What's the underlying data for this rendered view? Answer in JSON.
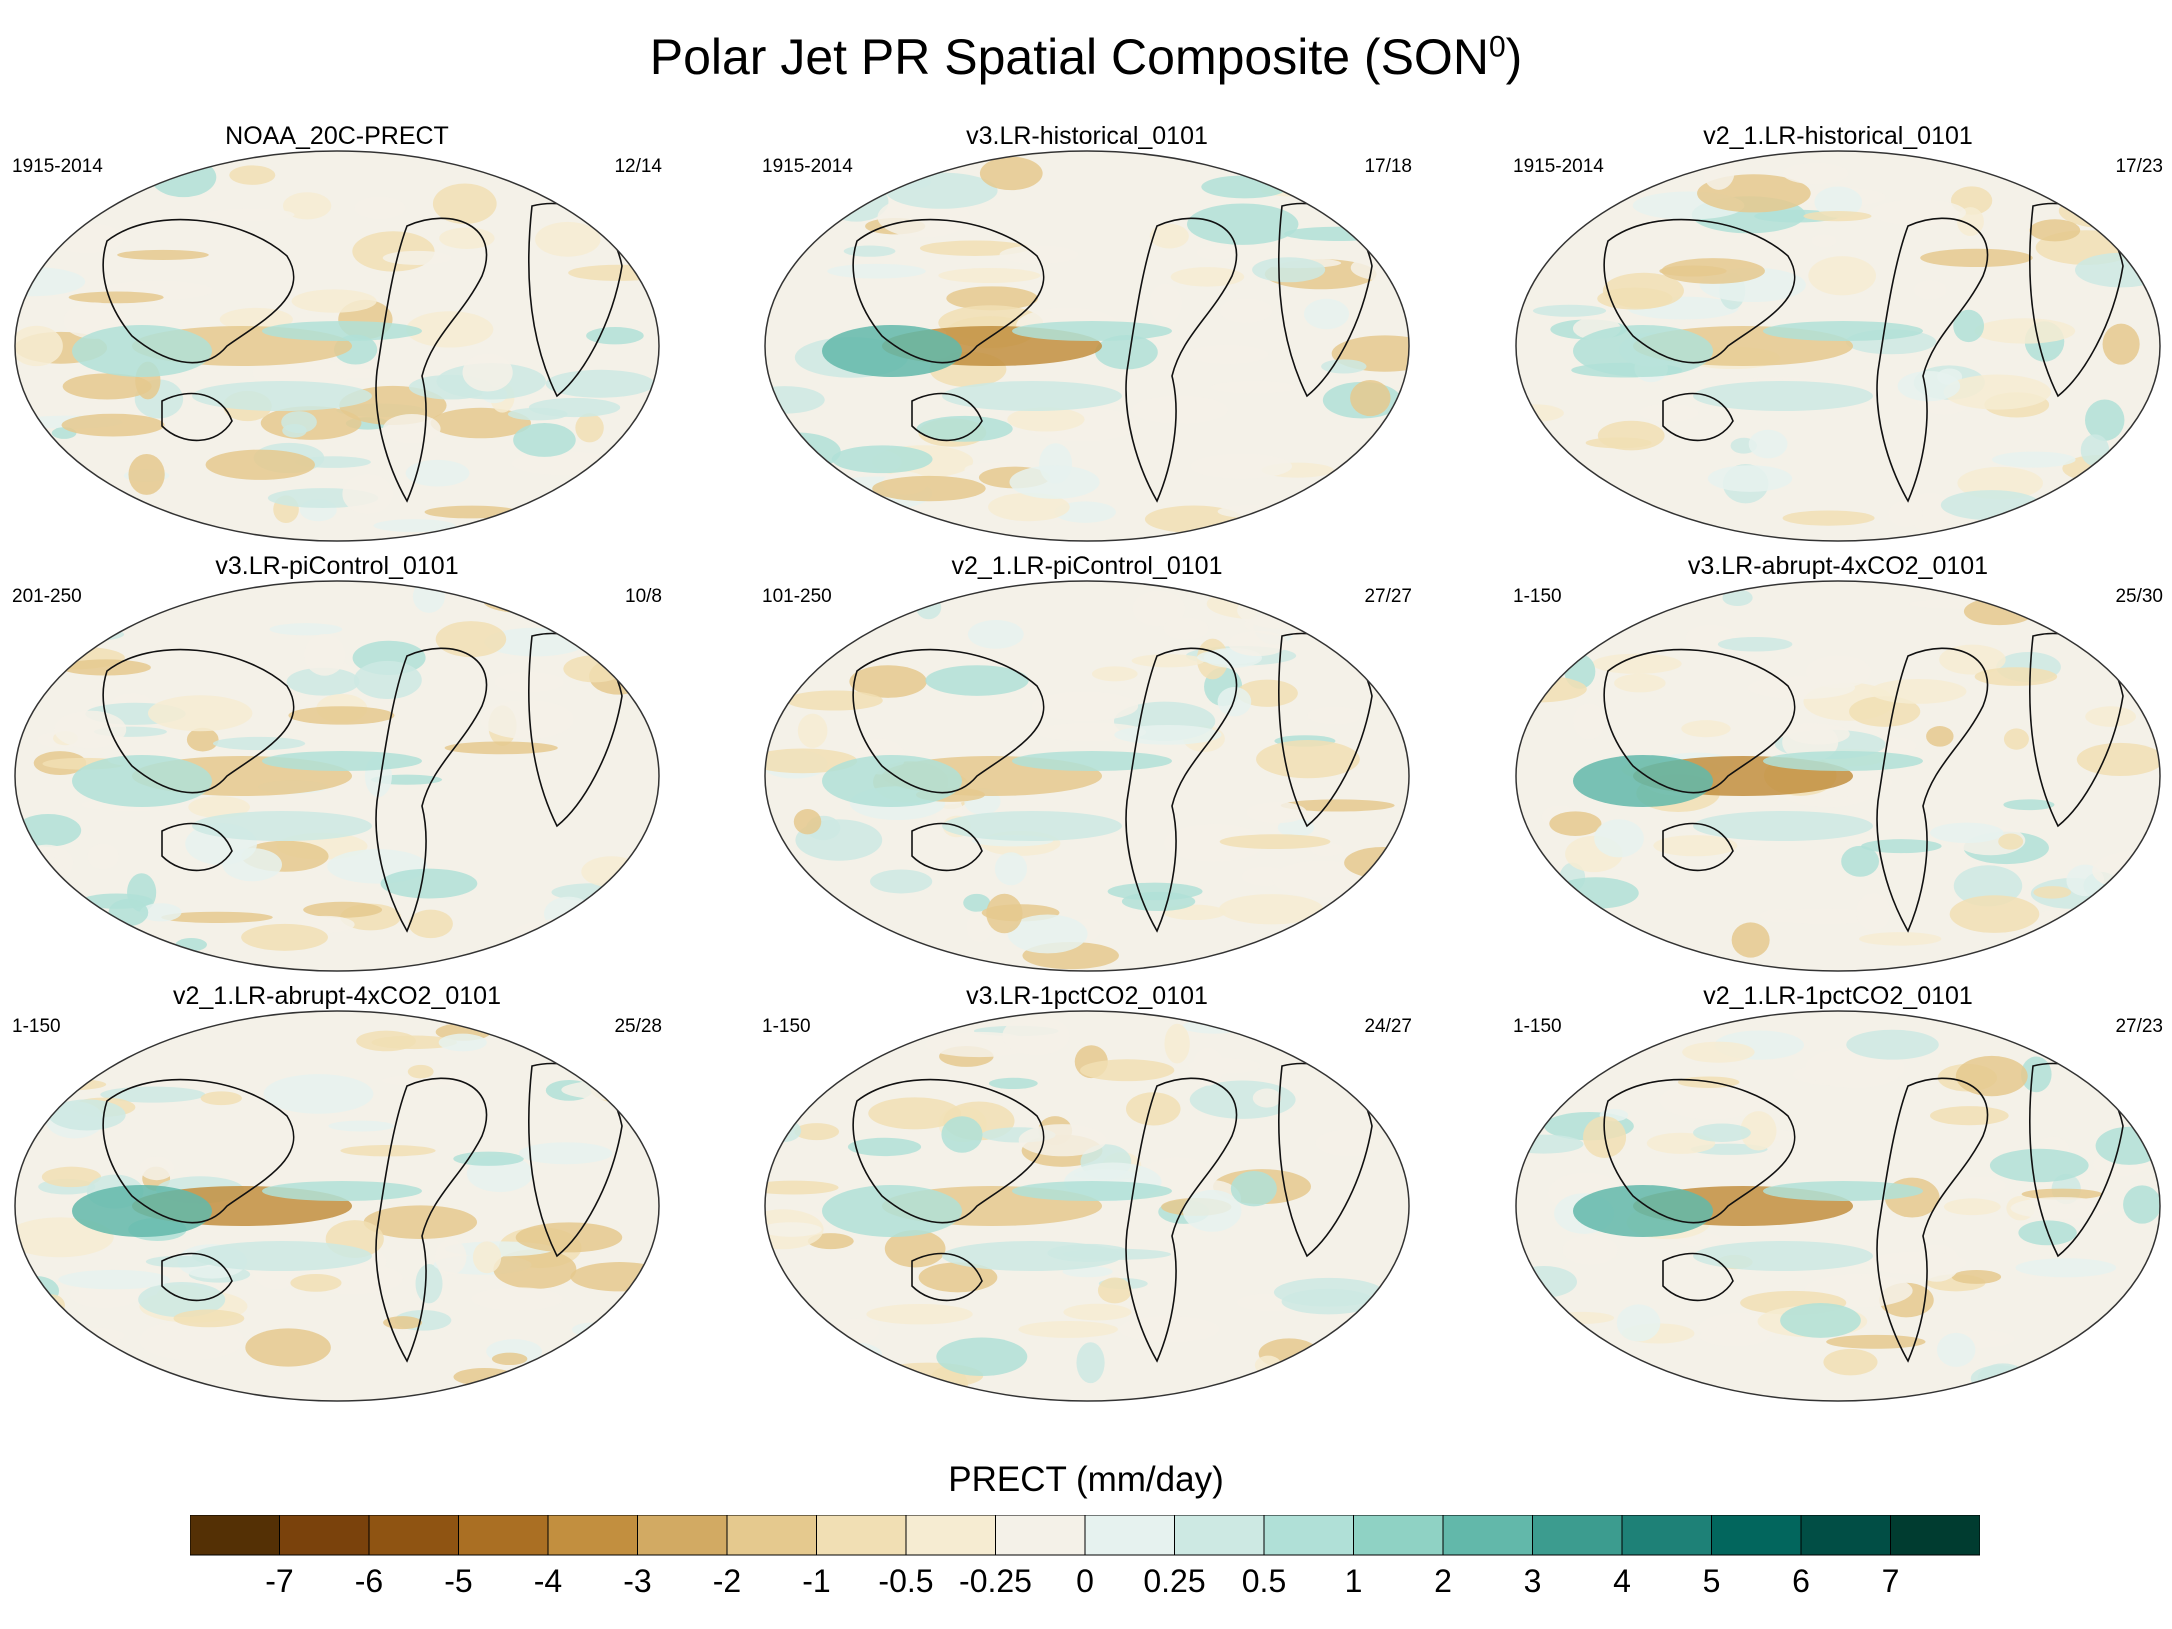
{
  "title": "Polar Jet PR Spatial Composite (SON",
  "title_sup": "0",
  "title_end": ")",
  "colorbar_title": "PRECT (mm/day)",
  "chart_data": [
    {
      "type": "map",
      "title": "NOAA_20C-PRECT",
      "period": "1915-2014",
      "count": "12/14"
    },
    {
      "type": "map",
      "title": "v3.LR-historical_0101",
      "period": "1915-2014",
      "count": "17/18"
    },
    {
      "type": "map",
      "title": "v2_1.LR-historical_0101",
      "period": "1915-2014",
      "count": "17/23"
    },
    {
      "type": "map",
      "title": "v3.LR-piControl_0101",
      "period": "201-250",
      "count": "10/8"
    },
    {
      "type": "map",
      "title": "v2_1.LR-piControl_0101",
      "period": "101-250",
      "count": "27/27"
    },
    {
      "type": "map",
      "title": "v3.LR-abrupt-4xCO2_0101",
      "period": "1-150",
      "count": "25/30"
    },
    {
      "type": "map",
      "title": "v2_1.LR-abrupt-4xCO2_0101",
      "period": "1-150",
      "count": "25/28"
    },
    {
      "type": "map",
      "title": "v3.LR-1pctCO2_0101",
      "period": "1-150",
      "count": "24/27"
    },
    {
      "type": "map",
      "title": "v2_1.LR-1pctCO2_0101",
      "period": "1-150",
      "count": "27/23"
    }
  ],
  "colorbar": {
    "ticks": [
      "-7",
      "-6",
      "-5",
      "-4",
      "-3",
      "-2",
      "-1",
      "-0.5",
      "-0.25",
      "0",
      "0.25",
      "0.5",
      "1",
      "2",
      "3",
      "4",
      "5",
      "6",
      "7"
    ],
    "colors": [
      "#543005",
      "#7a420c",
      "#8f5412",
      "#aa6f23",
      "#c28f3f",
      "#d2aa63",
      "#e5c98e",
      "#f1dfb4",
      "#f6ecd2",
      "#f4f1e8",
      "#e6f2ef",
      "#cde9e3",
      "#b0e0d7",
      "#8fd2c4",
      "#62b8aa",
      "#3c9c8f",
      "#1e8177",
      "#02665d",
      "#014e45",
      "#003c30"
    ]
  }
}
